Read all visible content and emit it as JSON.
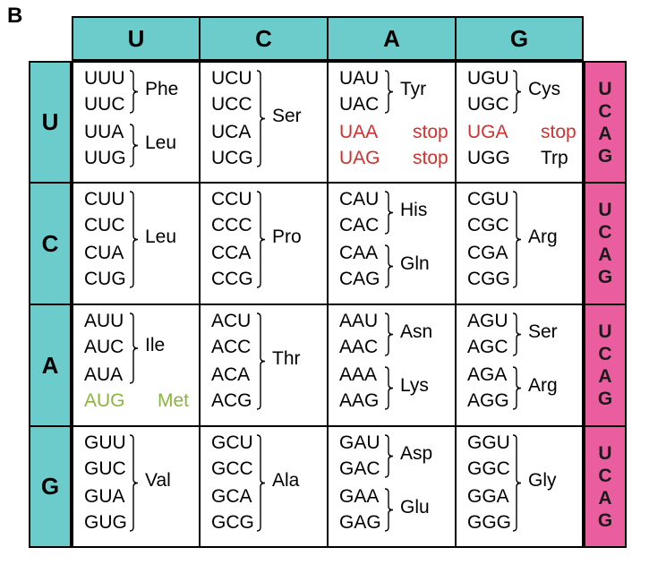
{
  "panel_label": "B",
  "second_base": [
    "U",
    "C",
    "A",
    "G"
  ],
  "first_base": [
    "U",
    "C",
    "A",
    "G"
  ],
  "third_base": [
    [
      "U",
      "C",
      "A",
      "G"
    ],
    [
      "U",
      "C",
      "A",
      "G"
    ],
    [
      "U",
      "C",
      "A",
      "G"
    ],
    [
      "U",
      "C",
      "A",
      "G"
    ]
  ],
  "colors": {
    "header_bg": "#6ccccc",
    "third_base_bg": "#ea5e9f",
    "stop_color": "#d1312f",
    "start_color": "#8bb43e"
  },
  "cells": [
    [
      {
        "codons": [
          "UUU",
          "UUC",
          "UUA",
          "UUG"
        ],
        "amino_acids": [
          {
            "label": "Phe",
            "codons": [
              0,
              1
            ]
          },
          {
            "label": "Leu",
            "codons": [
              2,
              3
            ]
          }
        ]
      },
      {
        "codons": [
          "UCU",
          "UCC",
          "UCA",
          "UCG"
        ],
        "amino_acids": [
          {
            "label": "Ser",
            "codons": [
              0,
              3
            ]
          }
        ]
      },
      {
        "codons": [
          "UAU",
          "UAC",
          "UAA",
          "UAG"
        ],
        "amino_acids": [
          {
            "label": "Tyr",
            "codons": [
              0,
              1
            ]
          },
          {
            "label": "stop",
            "codons": [
              2
            ],
            "style": "stop"
          },
          {
            "label": "stop",
            "codons": [
              3
            ],
            "style": "stop"
          }
        ]
      },
      {
        "codons": [
          "UGU",
          "UGC",
          "UGA",
          "UGG"
        ],
        "amino_acids": [
          {
            "label": "Cys",
            "codons": [
              0,
              1
            ]
          },
          {
            "label": "stop",
            "codons": [
              2
            ],
            "style": "stop"
          },
          {
            "label": "Trp",
            "codons": [
              3
            ]
          }
        ]
      }
    ],
    [
      {
        "codons": [
          "CUU",
          "CUC",
          "CUA",
          "CUG"
        ],
        "amino_acids": [
          {
            "label": "Leu",
            "codons": [
              0,
              3
            ]
          }
        ]
      },
      {
        "codons": [
          "CCU",
          "CCC",
          "CCA",
          "CCG"
        ],
        "amino_acids": [
          {
            "label": "Pro",
            "codons": [
              0,
              3
            ]
          }
        ]
      },
      {
        "codons": [
          "CAU",
          "CAC",
          "CAA",
          "CAG"
        ],
        "amino_acids": [
          {
            "label": "His",
            "codons": [
              0,
              1
            ]
          },
          {
            "label": "Gln",
            "codons": [
              2,
              3
            ]
          }
        ]
      },
      {
        "codons": [
          "CGU",
          "CGC",
          "CGA",
          "CGG"
        ],
        "amino_acids": [
          {
            "label": "Arg",
            "codons": [
              0,
              3
            ]
          }
        ]
      }
    ],
    [
      {
        "codons": [
          "AUU",
          "AUC",
          "AUA",
          "AUG"
        ],
        "amino_acids": [
          {
            "label": "Ile",
            "codons": [
              0,
              2
            ]
          },
          {
            "label": "Met",
            "codons": [
              3
            ],
            "style": "start"
          }
        ]
      },
      {
        "codons": [
          "ACU",
          "ACC",
          "ACA",
          "ACG"
        ],
        "amino_acids": [
          {
            "label": "Thr",
            "codons": [
              0,
              3
            ]
          }
        ]
      },
      {
        "codons": [
          "AAU",
          "AAC",
          "AAA",
          "AAG"
        ],
        "amino_acids": [
          {
            "label": "Asn",
            "codons": [
              0,
              1
            ]
          },
          {
            "label": "Lys",
            "codons": [
              2,
              3
            ]
          }
        ]
      },
      {
        "codons": [
          "AGU",
          "AGC",
          "AGA",
          "AGG"
        ],
        "amino_acids": [
          {
            "label": "Ser",
            "codons": [
              0,
              1
            ]
          },
          {
            "label": "Arg",
            "codons": [
              2,
              3
            ]
          }
        ]
      }
    ],
    [
      {
        "codons": [
          "GUU",
          "GUC",
          "GUA",
          "GUG"
        ],
        "amino_acids": [
          {
            "label": "Val",
            "codons": [
              0,
              3
            ]
          }
        ]
      },
      {
        "codons": [
          "GCU",
          "GCC",
          "GCA",
          "GCG"
        ],
        "amino_acids": [
          {
            "label": "Ala",
            "codons": [
              0,
              3
            ]
          }
        ]
      },
      {
        "codons": [
          "GAU",
          "GAC",
          "GAA",
          "GAG"
        ],
        "amino_acids": [
          {
            "label": "Asp",
            "codons": [
              0,
              1
            ]
          },
          {
            "label": "Glu",
            "codons": [
              2,
              3
            ]
          }
        ]
      },
      {
        "codons": [
          "GGU",
          "GGC",
          "GGA",
          "GGG"
        ],
        "amino_acids": [
          {
            "label": "Gly",
            "codons": [
              0,
              3
            ]
          }
        ]
      }
    ]
  ]
}
